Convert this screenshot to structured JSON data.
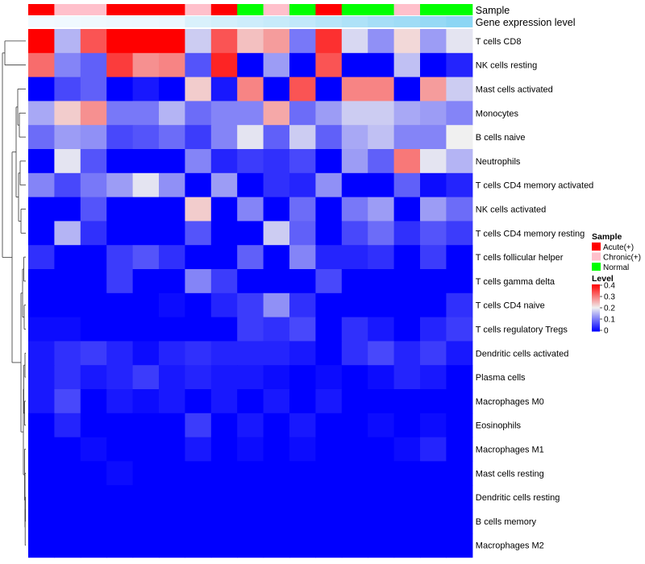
{
  "chart_data": {
    "type": "heatmap",
    "annotation_rows": [
      {
        "label": "Sample",
        "values": [
          "Acute(+)",
          "Chronic(+)",
          "Chronic(+)",
          "Acute(+)",
          "Acute(+)",
          "Acute(+)",
          "Chronic(+)",
          "Acute(+)",
          "Normal",
          "Chronic(+)",
          "Normal",
          "Acute(+)",
          "Normal",
          "Normal",
          "Chronic(+)",
          "Normal",
          "Normal"
        ]
      },
      {
        "label": "Gene expression level",
        "values": [
          0.98,
          0.97,
          0.96,
          0.95,
          0.94,
          0.93,
          0.82,
          0.78,
          0.74,
          0.7,
          0.66,
          0.6,
          0.54,
          0.48,
          0.44,
          0.38,
          0.32
        ]
      }
    ],
    "gene_expression_colors": {
      "low": "#5bc4ef",
      "high": "#f5fbff"
    },
    "rows": [
      "T cells CD8",
      "NK cells resting",
      "Mast cells activated",
      "Monocytes",
      "B cells naive",
      "Neutrophils",
      "T cells CD4 memory activated",
      "NK cells activated",
      "T cells CD4 memory resting",
      "T cells follicular helper",
      "T cells gamma delta",
      "T cells CD4 naive",
      "T cells regulatory  Tregs",
      "Dendritic cells activated",
      "Plasma cells",
      "Macrophages M0",
      "Eosinophils",
      "Macrophages M1",
      "Mast cells resting",
      "Dendritic cells resting",
      "B cells memory",
      "Macrophages M2"
    ],
    "values": [
      [
        0.4,
        0.15,
        0.33,
        0.4,
        0.4,
        0.4,
        0.17,
        0.33,
        0.24,
        0.27,
        0.1,
        0.36,
        0.18,
        0.12,
        0.22,
        0.13,
        0.19
      ],
      [
        0.31,
        0.11,
        0.08,
        0.35,
        0.28,
        0.29,
        0.07,
        0.37,
        0.0,
        0.13,
        0.0,
        0.33,
        0.0,
        0.0,
        0.16,
        0.0,
        0.03
      ],
      [
        0.0,
        0.06,
        0.08,
        0.0,
        0.02,
        0.0,
        0.23,
        0.02,
        0.29,
        0.0,
        0.33,
        0.0,
        0.29,
        0.29,
        0.0,
        0.27,
        0.17
      ],
      [
        0.14,
        0.23,
        0.28,
        0.1,
        0.1,
        0.15,
        0.09,
        0.11,
        0.11,
        0.26,
        0.09,
        0.13,
        0.17,
        0.17,
        0.14,
        0.13,
        0.11
      ],
      [
        0.09,
        0.13,
        0.12,
        0.06,
        0.07,
        0.09,
        0.05,
        0.11,
        0.19,
        0.08,
        0.17,
        0.08,
        0.14,
        0.16,
        0.11,
        0.11,
        0.2
      ],
      [
        0.0,
        0.19,
        0.07,
        0.0,
        0.0,
        0.0,
        0.11,
        0.03,
        0.05,
        0.04,
        0.06,
        0.0,
        0.13,
        0.08,
        0.3,
        0.19,
        0.15
      ],
      [
        0.11,
        0.06,
        0.1,
        0.13,
        0.19,
        0.12,
        0.0,
        0.13,
        0.0,
        0.04,
        0.03,
        0.12,
        0.0,
        0.0,
        0.08,
        0.01,
        0.03
      ],
      [
        0.0,
        0.0,
        0.07,
        0.0,
        0.0,
        0.0,
        0.23,
        0.0,
        0.11,
        0.0,
        0.09,
        0.0,
        0.1,
        0.13,
        0.0,
        0.13,
        0.09
      ],
      [
        0.0,
        0.15,
        0.04,
        0.0,
        0.0,
        0.0,
        0.07,
        0.0,
        0.0,
        0.17,
        0.08,
        0.0,
        0.06,
        0.09,
        0.04,
        0.07,
        0.05
      ],
      [
        0.04,
        0.0,
        0.0,
        0.05,
        0.07,
        0.04,
        0.0,
        0.0,
        0.08,
        0.0,
        0.11,
        0.03,
        0.03,
        0.04,
        0.0,
        0.05,
        0.0
      ],
      [
        0.0,
        0.0,
        0.0,
        0.05,
        0.0,
        0.0,
        0.11,
        0.05,
        0.0,
        0.0,
        0.0,
        0.06,
        0.0,
        0.0,
        0.0,
        0.0,
        0.0
      ],
      [
        0.0,
        0.0,
        0.0,
        0.0,
        0.0,
        0.01,
        0.0,
        0.03,
        0.05,
        0.12,
        0.04,
        0.0,
        0.0,
        0.0,
        0.0,
        0.0,
        0.04
      ],
      [
        0.01,
        0.01,
        0.0,
        0.0,
        0.0,
        0.0,
        0.0,
        0.0,
        0.05,
        0.04,
        0.06,
        0.0,
        0.04,
        0.02,
        0.0,
        0.03,
        0.05
      ],
      [
        0.02,
        0.04,
        0.05,
        0.03,
        0.01,
        0.03,
        0.04,
        0.03,
        0.03,
        0.03,
        0.02,
        0.0,
        0.04,
        0.06,
        0.03,
        0.05,
        0.02
      ],
      [
        0.02,
        0.04,
        0.02,
        0.03,
        0.05,
        0.02,
        0.03,
        0.02,
        0.02,
        0.01,
        0.0,
        0.01,
        0.0,
        0.01,
        0.03,
        0.02,
        0.0
      ],
      [
        0.02,
        0.06,
        0.0,
        0.02,
        0.01,
        0.02,
        0.0,
        0.02,
        0.0,
        0.02,
        0.0,
        0.02,
        0.0,
        0.0,
        0.0,
        0.0,
        0.0
      ],
      [
        0.0,
        0.03,
        0.0,
        0.0,
        0.0,
        0.0,
        0.05,
        0.0,
        0.02,
        0.0,
        0.02,
        0.0,
        0.0,
        0.01,
        0.0,
        0.01,
        0.0
      ],
      [
        0.0,
        0.0,
        0.01,
        0.0,
        0.0,
        0.0,
        0.02,
        0.0,
        0.01,
        0.0,
        0.01,
        0.0,
        0.0,
        0.0,
        0.01,
        0.03,
        0.0
      ],
      [
        0.0,
        0.0,
        0.0,
        0.01,
        0.0,
        0.0,
        0.0,
        0.0,
        0.0,
        0.0,
        0.0,
        0.0,
        0.0,
        0.0,
        0.0,
        0.0,
        0.0
      ],
      [
        0.0,
        0.0,
        0.0,
        0.0,
        0.0,
        0.0,
        0.0,
        0.0,
        0.0,
        0.0,
        0.0,
        0.0,
        0.0,
        0.0,
        0.0,
        0.0,
        0.0
      ],
      [
        0.0,
        0.0,
        0.0,
        0.0,
        0.0,
        0.0,
        0.0,
        0.0,
        0.0,
        0.0,
        0.0,
        0.0,
        0.0,
        0.0,
        0.0,
        0.0,
        0.0
      ],
      [
        0.0,
        0.0,
        0.0,
        0.0,
        0.0,
        0.0,
        0.0,
        0.0,
        0.0,
        0.0,
        0.0,
        0.0,
        0.0,
        0.0,
        0.0,
        0.0,
        0.0
      ]
    ],
    "color_scale": {
      "low": "#0000ff",
      "mid": "#f0f0f0",
      "high": "#ff0000",
      "min": 0,
      "mid_value": 0.2,
      "max": 0.4
    },
    "legend": {
      "sample_title": "Sample",
      "sample_items": [
        {
          "label": "Acute(+)",
          "color": "#ff0000"
        },
        {
          "label": "Chronic(+)",
          "color": "#ffc0cb"
        },
        {
          "label": "Normal",
          "color": "#00ff00"
        }
      ],
      "level_title": "Level",
      "level_ticks": [
        "0.4",
        "0.3",
        "0.2",
        "0.1",
        "0"
      ],
      "position": "right"
    },
    "row_dendrogram": true
  }
}
